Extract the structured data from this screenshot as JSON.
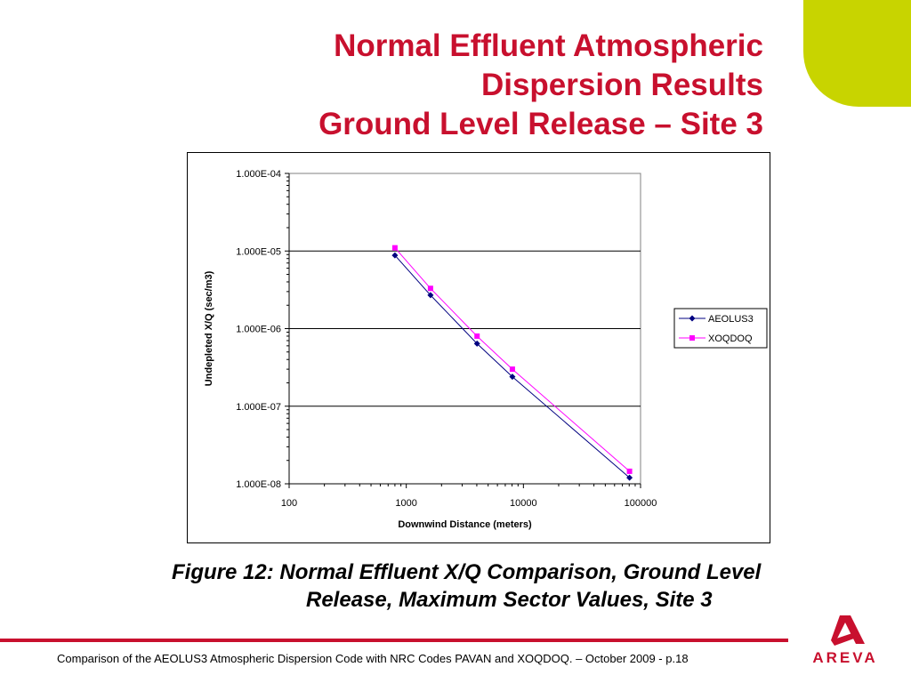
{
  "slide": {
    "title_lines": [
      "Normal Effluent Atmospheric",
      "Dispersion Results",
      "Ground Level Release – Site 3"
    ],
    "caption_line1": "Figure 12:  Normal Effluent X/Q Comparison, Ground Level",
    "caption_line2": "Release, Maximum Sector Values, Site 3",
    "footer": "Comparison of the AEOLUS3 Atmospheric Dispersion Code with NRC Codes PAVAN and XOQDOQ. – October 2009 - p.18",
    "logo_text": "AREVA",
    "accent_color": "#c8102e",
    "leaf_color": "#c8d400"
  },
  "chart_data": {
    "type": "scatter",
    "xlabel": "Downwind Distance (meters)",
    "ylabel": "Undepleted X/Q (sec/m3)",
    "x_scale": "log",
    "y_scale": "log",
    "xlim": [
      100,
      100000
    ],
    "ylim": [
      1e-08,
      0.0001
    ],
    "x_ticks": [
      100,
      1000,
      10000,
      100000
    ],
    "x_tick_labels": [
      "100",
      "1000",
      "10000",
      "100000"
    ],
    "y_ticks": [
      1e-08,
      1e-07,
      1e-06,
      1e-05,
      0.0001
    ],
    "y_tick_labels": [
      "1.000E-08",
      "1.000E-07",
      "1.000E-06",
      "1.000E-05",
      "1.000E-04"
    ],
    "grid": "horizontal major lines",
    "legend_position": "right",
    "series": [
      {
        "name": "AEOLUS3",
        "color": "#000080",
        "marker": "diamond",
        "x": [
          800,
          1610,
          4020,
          8050,
          80500
        ],
        "y": [
          8.8e-06,
          2.7e-06,
          6.4e-07,
          2.4e-07,
          1.2e-08
        ]
      },
      {
        "name": "XOQDOQ",
        "color": "#ff00ff",
        "marker": "square",
        "x": [
          800,
          1610,
          4020,
          8050,
          80500
        ],
        "y": [
          1.1e-05,
          3.3e-06,
          8e-07,
          3e-07,
          1.45e-08
        ]
      }
    ]
  }
}
